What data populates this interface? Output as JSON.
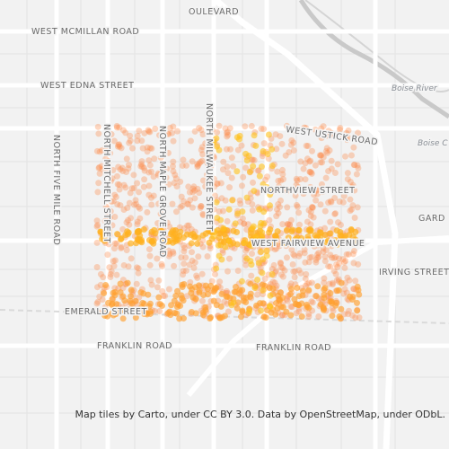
{
  "streets": {
    "mcmillan": "WEST MCMILLAN ROAD",
    "edna": "WEST EDNA STREET",
    "five_mile": "NORTH FIVE MILE ROAD",
    "mitchell": "NORTH MITCHELL STREET",
    "maple_grove": "NORTH MAPLE GROVE ROAD",
    "milwaukee": "NORTH MILWAUKEE STREET",
    "ustick": "WEST USTICK ROAD",
    "northview": "NORTHVIEW STREET",
    "fairview": "WEST FAIRVIEW AVENUE",
    "irving": "IRVING STREET",
    "emerald": "EMERALD STREET",
    "franklin_west": "FRANKLIN ROAD",
    "franklin_east": "FRANKLIN ROAD",
    "boulevard": "OULEVARD",
    "gard": "GARD"
  },
  "water": {
    "river": "Boise River",
    "canal": "Boise C"
  },
  "attribution": "Map tiles by Carto, under CC BY 3.0. Data by OpenStreetMap, under ODbL."
}
